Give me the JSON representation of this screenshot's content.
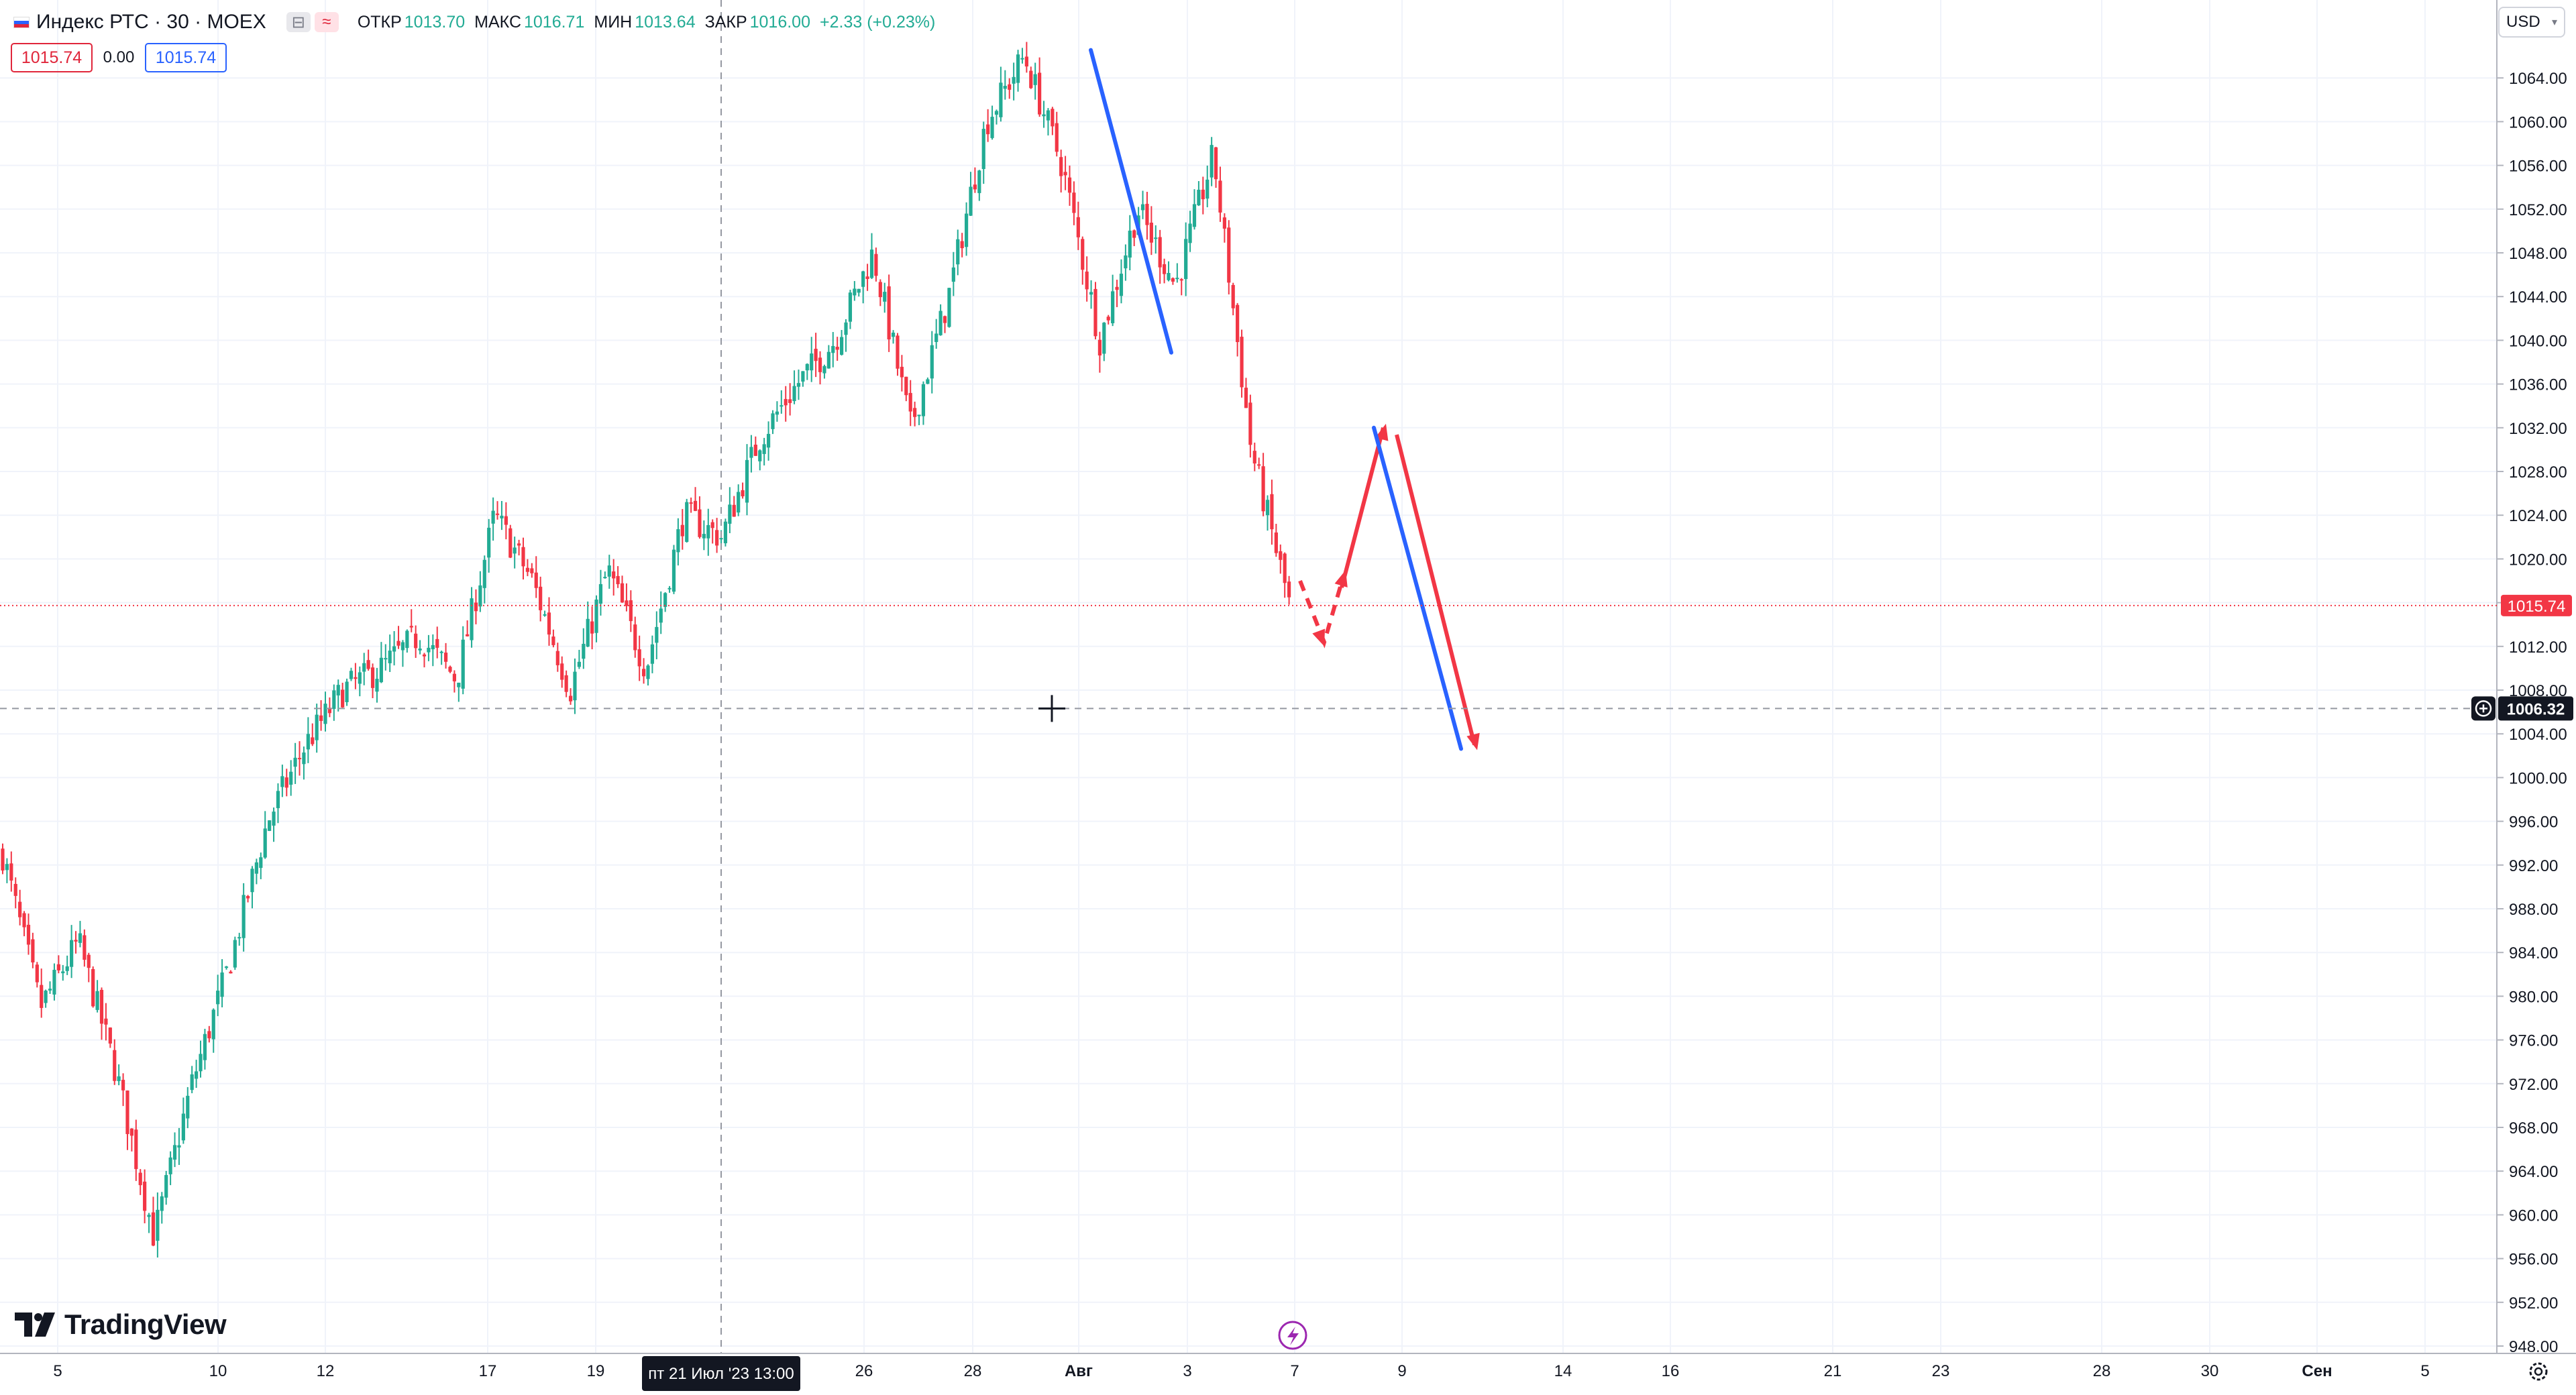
{
  "legend": {
    "title": "Индекс РТС · 30 · MOEX",
    "icon_flag": "flag-icon",
    "chip_a": "⊟",
    "chip_b": "≈",
    "open_label": "ОТКР",
    "open_value": "1013.70",
    "high_label": "МАКС",
    "high_value": "1016.71",
    "low_label": "МИН",
    "low_value": "1013.64",
    "close_label": "ЗАКР",
    "close_value": "1016.00",
    "change": "+2.33 (+0.23%)"
  },
  "trade": {
    "sell": "1015.74",
    "spread": "0.00",
    "buy": "1015.74"
  },
  "currency": {
    "label": "USD",
    "icon": "chevron-down-icon"
  },
  "brand": {
    "logo_text": "TradingView",
    "logo_icon": "tradingview-logo-icon"
  },
  "last_price_label": "1015.74",
  "crosshair_price_label": "1006.32",
  "crosshair_time_label": "пт 21 Июл '23   13:00",
  "colors": {
    "up": "#22ab94",
    "down": "#f23645",
    "blue_line": "#2962ff",
    "red_arrow": "#f23645",
    "last_price": "#f23645",
    "grid": "#f0f3fa"
  },
  "chart_data": {
    "type": "candlestick",
    "title": "Индекс РТС · 30 · MOEX",
    "xlabel": "",
    "ylabel": "",
    "y_range": [
      946,
      1068
    ],
    "y_ticks": [
      "948.00",
      "952.00",
      "956.00",
      "960.00",
      "964.00",
      "968.00",
      "972.00",
      "976.00",
      "980.00",
      "984.00",
      "988.00",
      "992.00",
      "996.00",
      "1000.00",
      "1004.00",
      "1008.00",
      "1012.00",
      "1016.00",
      "1020.00",
      "1024.00",
      "1028.00",
      "1032.00",
      "1036.00",
      "1040.00",
      "1044.00",
      "1048.00",
      "1052.00",
      "1056.00",
      "1060.00",
      "1064.00"
    ],
    "x_ticks": [
      "5",
      "10",
      "12",
      "17",
      "19",
      "26",
      "28",
      "Авг",
      "3",
      "7",
      "9",
      "14",
      "16",
      "21",
      "23",
      "28",
      "30",
      "Сен",
      "5"
    ],
    "price_path": [
      [
        "5",
        993
      ],
      [
        "",
        979
      ],
      [
        "",
        985
      ],
      [
        "",
        973
      ],
      [
        "",
        958
      ],
      [
        "10",
        972
      ],
      [
        "",
        983
      ],
      [
        "",
        996
      ],
      [
        "12",
        1003
      ],
      [
        "",
        1008
      ],
      [
        "",
        1010
      ],
      [
        "17",
        1013
      ],
      [
        "",
        1009
      ],
      [
        "",
        1024
      ],
      [
        "19",
        1018
      ],
      [
        "",
        1008
      ],
      [
        "",
        1019
      ],
      [
        "",
        1010
      ],
      [
        "",
        1024
      ],
      [
        "",
        1022
      ],
      [
        "",
        1031
      ],
      [
        "",
        1036
      ],
      [
        "26",
        1040
      ],
      [
        "",
        1048
      ],
      [
        "28",
        1032
      ],
      [
        "",
        1044
      ],
      [
        "Авг",
        1060
      ],
      [
        "",
        1066
      ],
      [
        "",
        1056
      ],
      [
        "3",
        1040
      ],
      [
        "",
        1052
      ],
      [
        "",
        1045
      ],
      [
        "",
        1057
      ],
      [
        "",
        1030
      ],
      [
        "7",
        1016
      ]
    ],
    "drawings": [
      {
        "type": "trend-line",
        "color": "blue",
        "from": [
          "Авг",
          1066
        ],
        "to": [
          "3",
          1039
        ]
      },
      {
        "type": "arrow-dashed",
        "color": "red",
        "path": [
          [
            "7",
            1018
          ],
          [
            "",
            1013
          ],
          [
            "",
            1018
          ]
        ]
      },
      {
        "type": "arrow",
        "color": "red",
        "from": [
          "7",
          1018
        ],
        "to": [
          "9",
          1032
        ]
      },
      {
        "type": "arrow",
        "color": "red",
        "from": [
          "9",
          1031
        ],
        "to": [
          "",
          1003
        ]
      },
      {
        "type": "trend-line",
        "color": "blue",
        "from": [
          "9",
          1032
        ],
        "to": [
          "",
          1003
        ]
      }
    ]
  }
}
